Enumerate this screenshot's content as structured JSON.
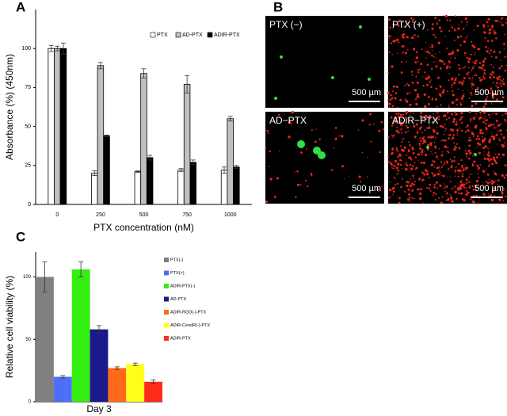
{
  "chart_data": [
    {
      "type": "bar",
      "panel_label": "A",
      "x_label": "PTX concentration (nM)",
      "y_label": "Absorbance (%) (450nm)",
      "categories": [
        "0",
        "250",
        "500",
        "750",
        "1000"
      ],
      "series": [
        {
          "name": "PTX",
          "color": "#ffffff",
          "values": [
            100,
            20,
            21,
            22,
            22
          ],
          "errors": [
            2,
            1.5,
            0.5,
            1,
            2
          ]
        },
        {
          "name": "AD-PTX",
          "color": "#c0c0c0",
          "values": [
            100,
            89,
            84,
            77,
            55
          ],
          "errors": [
            1.5,
            2,
            3,
            5.5,
            1.5
          ]
        },
        {
          "name": "ADIR-PTX",
          "color": "#000000",
          "values": [
            100,
            44,
            30,
            27,
            24
          ],
          "errors": [
            3.5,
            0.5,
            1.5,
            1.5,
            1
          ]
        }
      ],
      "ylim": [
        0,
        125
      ],
      "yticks": [
        0,
        25,
        50,
        75,
        100
      ],
      "legend": "top-right"
    },
    {
      "type": "bar",
      "panel_label": "C",
      "y_label": "Relative cell viability (%)",
      "categories": [
        "Day 3"
      ],
      "series": [
        {
          "name": "PTX(-)",
          "color": "#7f8080",
          "values": [
            100
          ],
          "errors": [
            12
          ]
        },
        {
          "name": "PTX(+)",
          "color": "#4f6ef7",
          "values": [
            20
          ],
          "errors": [
            1
          ]
        },
        {
          "name": "ADIR-PTX(-)",
          "color": "#33ee11",
          "values": [
            106
          ],
          "errors": [
            6
          ]
        },
        {
          "name": "AD-PTX",
          "color": "#1a1a8c",
          "values": [
            58
          ],
          "errors": [
            3
          ]
        },
        {
          "name": "ADIR-RGD(-)-PTX",
          "color": "#ff6a1a",
          "values": [
            27
          ],
          "errors": [
            1
          ]
        },
        {
          "name": "ADIR-CendR(-)-PTX",
          "color": "#ffff1a",
          "values": [
            30
          ],
          "errors": [
            1
          ]
        },
        {
          "name": "ADIR-PTX",
          "color": "#ff2a1a",
          "values": [
            16
          ],
          "errors": [
            1.5
          ]
        }
      ],
      "ylim": [
        0,
        120
      ],
      "yticks": [
        0,
        50,
        100
      ],
      "legend": "right"
    }
  ],
  "image_panel": {
    "panel_label": "B",
    "images": [
      {
        "label": "PTX (−)",
        "scale": "500 µm"
      },
      {
        "label": "PTX (+)",
        "scale": "500 µm"
      },
      {
        "label": "AD−PTX",
        "scale": "500 µm"
      },
      {
        "label": "ADiR−PTX",
        "scale": "500 µm"
      }
    ]
  }
}
